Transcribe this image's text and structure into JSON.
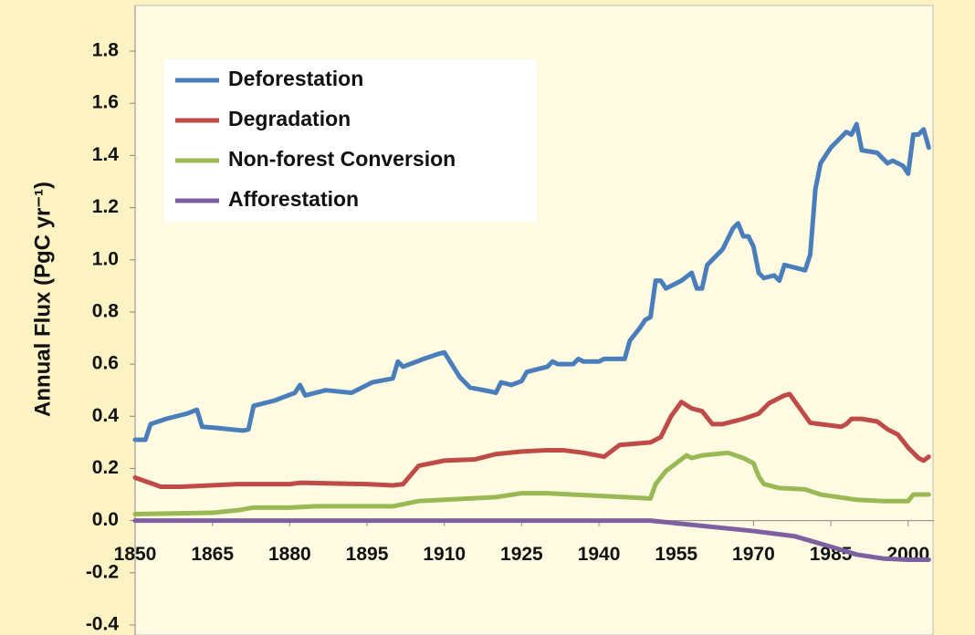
{
  "chart_data": {
    "type": "line",
    "ylabel": "Annual Flux (PgC yr⁻¹)",
    "xlim": [
      1850,
      2005
    ],
    "xticks": [
      1850,
      1865,
      1880,
      1895,
      1910,
      1925,
      1940,
      1955,
      1970,
      1985,
      2000
    ],
    "ylim": [
      -0.4,
      1.8
    ],
    "yticks": [
      {
        "value": -0.4,
        "label": "-0.4"
      },
      {
        "value": -0.2,
        "label": "-0.2"
      },
      {
        "value": 0,
        "label": "0.0"
      },
      0.2,
      0.4,
      0.6,
      0.8,
      {
        "value": 1,
        "label": "1.0"
      },
      1.2,
      1.4,
      1.6,
      1.8
    ],
    "grid": false,
    "legend": "upper left",
    "series": [
      {
        "name": "Deforestation",
        "color": "#4a7ebb",
        "x": [
          1850,
          1852,
          1853,
          1856,
          1860,
          1862,
          1863,
          1866,
          1871,
          1872,
          1873,
          1877,
          1881,
          1882,
          1883,
          1887,
          1892,
          1894,
          1896,
          1900,
          1901,
          1902,
          1906,
          1909,
          1910,
          1913,
          1915,
          1919,
          1920,
          1921,
          1923,
          1925,
          1926,
          1930,
          1931,
          1932,
          1935,
          1936,
          1937,
          1940,
          1941,
          1945,
          1946,
          1948,
          1949,
          1950,
          1951,
          1952,
          1953,
          1956,
          1958,
          1959,
          1960,
          1961,
          1964,
          1965,
          1966,
          1967,
          1968,
          1969,
          1970,
          1971,
          1972,
          1974,
          1975,
          1976,
          1978,
          1980,
          1981,
          1982,
          1983,
          1985,
          1987,
          1988,
          1989,
          1990,
          1991,
          1994,
          1996,
          1997,
          1999,
          2000,
          2001,
          2002,
          2003,
          2004
        ],
        "values": [
          0.31,
          0.31,
          0.37,
          0.39,
          0.41,
          0.425,
          0.36,
          0.355,
          0.345,
          0.35,
          0.44,
          0.46,
          0.49,
          0.52,
          0.48,
          0.5,
          0.49,
          0.51,
          0.53,
          0.545,
          0.61,
          0.59,
          0.62,
          0.64,
          0.645,
          0.55,
          0.51,
          0.495,
          0.49,
          0.53,
          0.52,
          0.535,
          0.57,
          0.59,
          0.61,
          0.6,
          0.6,
          0.62,
          0.61,
          0.61,
          0.62,
          0.62,
          0.69,
          0.74,
          0.77,
          0.78,
          0.92,
          0.92,
          0.89,
          0.92,
          0.95,
          0.89,
          0.89,
          0.98,
          1.04,
          1.08,
          1.12,
          1.14,
          1.09,
          1.09,
          1.05,
          0.95,
          0.93,
          0.94,
          0.92,
          0.98,
          0.97,
          0.96,
          1.02,
          1.27,
          1.37,
          1.43,
          1.47,
          1.49,
          1.48,
          1.52,
          1.42,
          1.41,
          1.37,
          1.38,
          1.36,
          1.33,
          1.48,
          1.48,
          1.5,
          1.43
        ]
      },
      {
        "name": "Degradation",
        "color": "#be4b48",
        "x": [
          1850,
          1855,
          1859,
          1870,
          1880,
          1882,
          1895,
          1900,
          1902,
          1905,
          1910,
          1916,
          1920,
          1925,
          1930,
          1933,
          1937,
          1941,
          1944,
          1950,
          1952,
          1954,
          1956,
          1958,
          1960,
          1962,
          1964,
          1968,
          1971,
          1973,
          1976,
          1977,
          1979,
          1981,
          1983,
          1987,
          1988,
          1989,
          1991,
          1994,
          1996,
          1998,
          2000,
          2002,
          2003,
          2004
        ],
        "values": [
          0.165,
          0.13,
          0.13,
          0.14,
          0.14,
          0.145,
          0.14,
          0.135,
          0.14,
          0.21,
          0.23,
          0.235,
          0.255,
          0.265,
          0.27,
          0.27,
          0.26,
          0.245,
          0.29,
          0.3,
          0.32,
          0.4,
          0.455,
          0.43,
          0.42,
          0.37,
          0.37,
          0.39,
          0.41,
          0.45,
          0.48,
          0.485,
          0.43,
          0.375,
          0.37,
          0.36,
          0.37,
          0.39,
          0.39,
          0.38,
          0.35,
          0.33,
          0.28,
          0.24,
          0.23,
          0.245
        ]
      },
      {
        "name": "Non-forest Conversion",
        "color": "#98b954",
        "x": [
          1850,
          1865,
          1870,
          1873,
          1880,
          1885,
          1900,
          1905,
          1910,
          1915,
          1920,
          1925,
          1930,
          1940,
          1945,
          1950,
          1951,
          1953,
          1955,
          1957,
          1958,
          1960,
          1965,
          1968,
          1970,
          1971,
          1972,
          1975,
          1980,
          1983,
          1990,
          1995,
          2000,
          2001,
          2004
        ],
        "values": [
          0.025,
          0.03,
          0.04,
          0.05,
          0.05,
          0.055,
          0.055,
          0.075,
          0.08,
          0.085,
          0.09,
          0.105,
          0.105,
          0.095,
          0.09,
          0.085,
          0.14,
          0.19,
          0.22,
          0.25,
          0.24,
          0.25,
          0.26,
          0.24,
          0.22,
          0.17,
          0.14,
          0.125,
          0.12,
          0.1,
          0.08,
          0.075,
          0.075,
          0.1,
          0.1
        ]
      },
      {
        "name": "Afforestation",
        "color": "#7d60a0",
        "x": [
          1850,
          1950,
          1960,
          1970,
          1978,
          1985,
          1990,
          1995,
          2000,
          2004
        ],
        "values": [
          0,
          0,
          -0.02,
          -0.04,
          -0.06,
          -0.1,
          -0.13,
          -0.145,
          -0.15,
          -0.15
        ]
      }
    ]
  }
}
